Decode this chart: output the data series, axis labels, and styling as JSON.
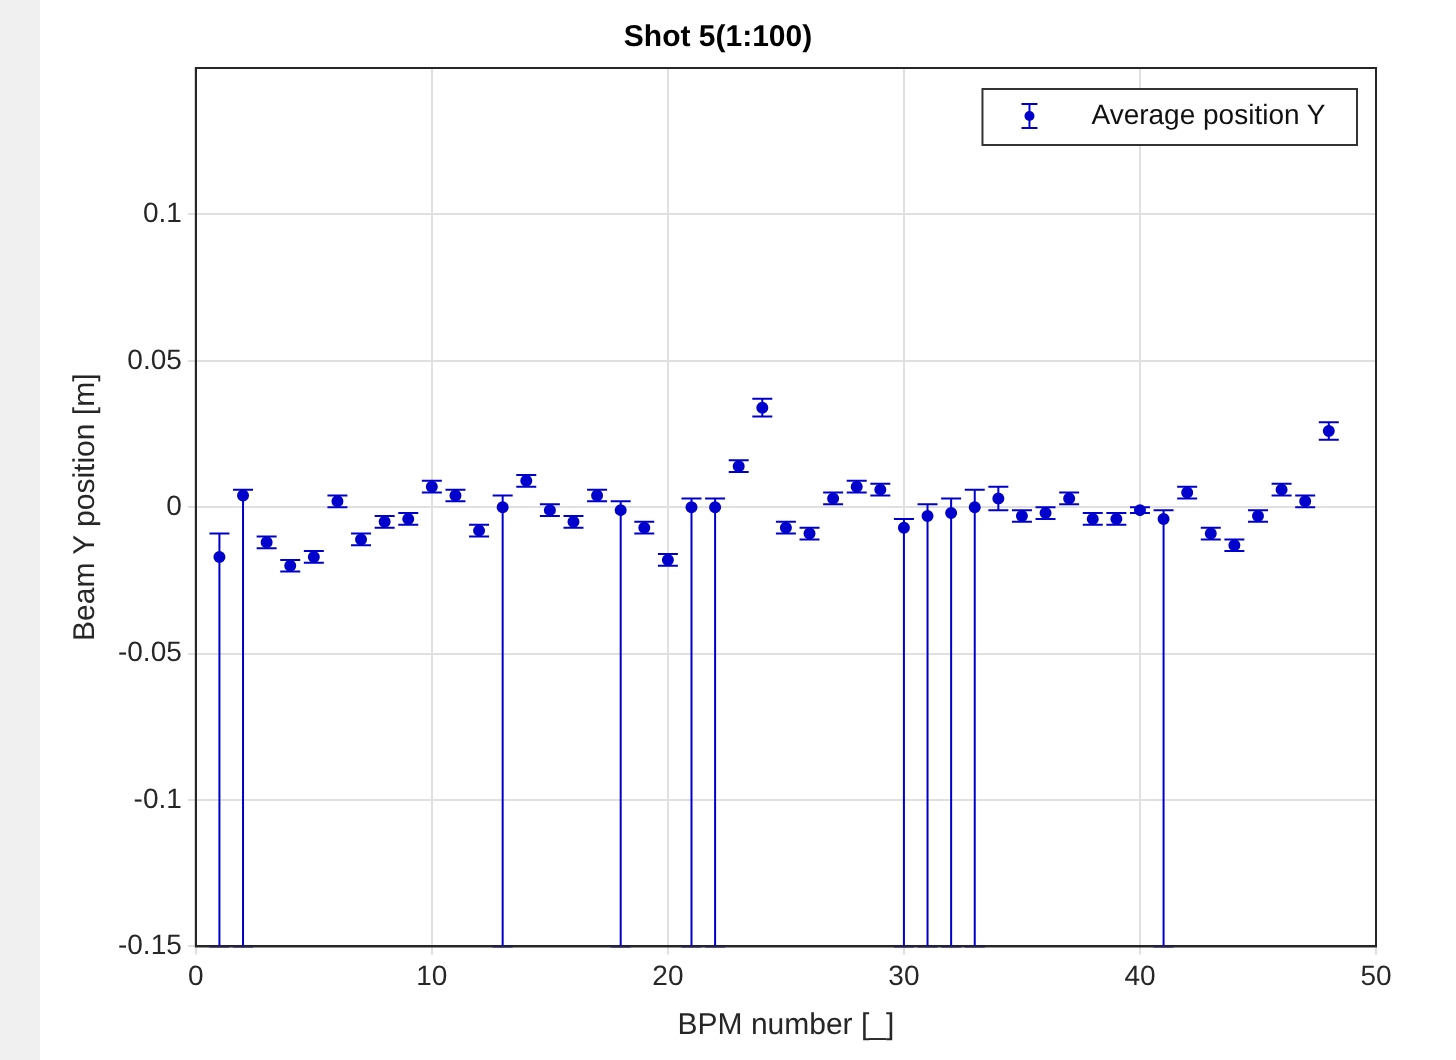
{
  "chart_data": {
    "type": "scatter",
    "title": "Shot 5(1:100)",
    "xlabel": "BPM number [_]",
    "ylabel": "Beam Y position [m]",
    "x": [
      1,
      2,
      3,
      4,
      5,
      6,
      7,
      8,
      9,
      10,
      11,
      12,
      13,
      14,
      15,
      16,
      17,
      18,
      19,
      20,
      21,
      22,
      23,
      24,
      25,
      26,
      27,
      28,
      29,
      30,
      31,
      32,
      33,
      34,
      35,
      36,
      37,
      38,
      39,
      40,
      41,
      42,
      43,
      44,
      45,
      46,
      47,
      48
    ],
    "series": [
      {
        "name": "Average position Y",
        "color": "#0000cc",
        "values": [
          -0.017,
          0.004,
          -0.012,
          -0.02,
          -0.017,
          0.002,
          -0.011,
          -0.005,
          -0.004,
          0.007,
          0.004,
          -0.008,
          0,
          0.009,
          -0.001,
          -0.005,
          0.004,
          -0.001,
          -0.007,
          -0.018,
          0,
          0,
          0.014,
          0.034,
          -0.007,
          -0.009,
          0.003,
          0.007,
          0.006,
          -0.007,
          -0.003,
          -0.002,
          0,
          0.003,
          -0.003,
          -0.002,
          0.003,
          -0.004,
          -0.004,
          -0.001,
          -0.004,
          0.005,
          -0.009,
          -0.013,
          -0.003,
          0.006,
          0.002,
          0.026
        ],
        "errors": [
          [
            -0.15,
            -0.009
          ],
          [
            -0.15,
            0.006
          ],
          0.002,
          0.002,
          0.002,
          0.002,
          0.002,
          0.002,
          0.002,
          0.002,
          0.002,
          0.002,
          [
            -0.15,
            0.004
          ],
          0.002,
          0.002,
          0.002,
          0.002,
          [
            -0.15,
            0.002
          ],
          0.002,
          0.002,
          [
            -0.15,
            0.003
          ],
          [
            -0.15,
            0.003
          ],
          0.002,
          0.003,
          0.002,
          0.002,
          0.002,
          0.002,
          0.002,
          [
            -0.15,
            -0.004
          ],
          [
            -0.15,
            0.001
          ],
          [
            -0.15,
            0.003
          ],
          [
            -0.15,
            0.006
          ],
          0.004,
          0.002,
          0.002,
          0.002,
          0.002,
          0.002,
          0.001,
          [
            -0.15,
            -0.001
          ],
          0.002,
          0.002,
          0.002,
          0.002,
          0.002,
          0.002,
          0.003
        ]
      }
    ],
    "xlim": [
      0,
      50
    ],
    "xticks": [
      0,
      10,
      20,
      30,
      40,
      50
    ],
    "ylim": [
      -0.15,
      0.15
    ],
    "yticks": [
      -0.15,
      -0.1,
      -0.05,
      0,
      0.05,
      0.1
    ],
    "grid": true,
    "legend": "top right",
    "marker": "circle"
  }
}
